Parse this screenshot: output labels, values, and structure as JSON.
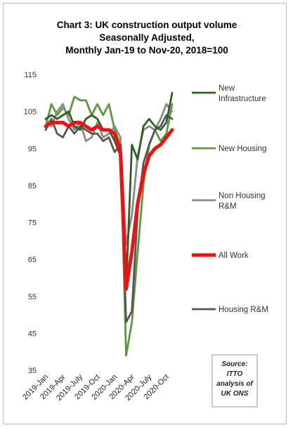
{
  "chart_data": {
    "type": "line",
    "title_lines": [
      "Chart 3: UK construction output volume",
      "Seasonally Adjusted,",
      "Monthly Jan-19 to Nov-20, 2018=100"
    ],
    "xlabel": "",
    "ylabel": "",
    "ylim": [
      35,
      115
    ],
    "yticks": [
      115,
      105,
      95,
      85,
      75,
      65,
      55,
      45,
      35
    ],
    "x_tick_labels": [
      "2019-Jan",
      "2019-Apr",
      "2019-July",
      "2019-Oct",
      "2020-Jan",
      "2020-Apr",
      "2020-July",
      "2020-Oct"
    ],
    "x_tick_index": [
      0,
      3,
      6,
      9,
      12,
      15,
      18,
      21
    ],
    "x_count": 23,
    "grid": false,
    "legend_position": "right",
    "series": [
      {
        "name": "New Infrastructure",
        "color": "#2f5f22",
        "width": 2.8,
        "values": [
          103,
          104,
          103,
          104,
          105,
          101,
          100,
          103,
          104,
          103,
          100,
          100,
          97,
          93,
          57,
          96,
          92,
          101,
          103,
          101,
          100,
          102,
          110
        ]
      },
      {
        "name": "New Housing",
        "color": "#5c9a3c",
        "width": 2.8,
        "values": [
          101,
          107,
          104,
          106,
          104,
          109,
          108,
          108,
          104,
          107,
          104,
          107,
          100,
          96,
          39,
          48,
          67,
          85,
          96,
          100,
          97,
          99,
          107
        ]
      },
      {
        "name": "Non Housing R&M",
        "color": "#8a8a8a",
        "width": 2.8,
        "values": [
          103,
          101,
          105,
          107,
          103,
          100,
          102,
          97,
          98,
          102,
          98,
          99,
          101,
          98,
          69,
          77,
          93,
          100,
          101,
          100,
          103,
          107,
          105
        ]
      },
      {
        "name": "All Work",
        "color": "#ee1111",
        "width": 5,
        "values": [
          101,
          102,
          102,
          102,
          101,
          102,
          102,
          101,
          100,
          101,
          100,
          100,
          99,
          94,
          57,
          67,
          80,
          88,
          93,
          95,
          96,
          98,
          100
        ]
      },
      {
        "name": "Housing R&M",
        "color": "#555555",
        "width": 2.8,
        "values": [
          100,
          103,
          99,
          98,
          101,
          99,
          101,
          100,
          99,
          99,
          97,
          98,
          94,
          96,
          48,
          51,
          78,
          91,
          96,
          100,
          101,
          104,
          103
        ]
      }
    ],
    "source_note_lines": [
      "Source:",
      "ITTO",
      "analysis of",
      "UK ONS"
    ]
  }
}
